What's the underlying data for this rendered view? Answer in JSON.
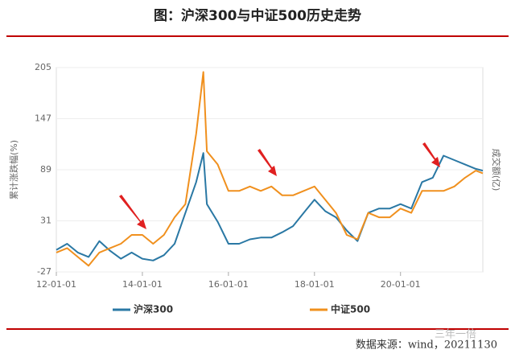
{
  "chart_data": {
    "type": "line",
    "title": "图：沪深300与中证500历史走势",
    "y_label": "累计涨跌幅(%)",
    "y2_label": "成交额(亿)",
    "x": [
      "12-01-01",
      "12-04-01",
      "12-07-01",
      "12-10-01",
      "13-01-01",
      "13-04-01",
      "13-07-01",
      "13-10-01",
      "14-01-01",
      "14-04-01",
      "14-07-01",
      "14-10-01",
      "15-01-01",
      "15-04-01",
      "15-06-01",
      "15-07-01",
      "15-10-01",
      "16-01-01",
      "16-04-01",
      "16-07-01",
      "16-10-01",
      "17-01-01",
      "17-04-01",
      "17-07-01",
      "17-10-01",
      "18-01-01",
      "18-04-01",
      "18-07-01",
      "18-10-01",
      "19-01-01",
      "19-04-01",
      "19-07-01",
      "19-10-01",
      "20-01-01",
      "20-04-01",
      "20-07-01",
      "20-10-01",
      "21-01-01",
      "21-04-01",
      "21-07-01",
      "21-10-01",
      "21-11-30"
    ],
    "xlim": [
      "12-01-01",
      "21-11-30"
    ],
    "xticks": [
      "12-01-01",
      "14-01-01",
      "16-01-01",
      "18-01-01",
      "20-01-01"
    ],
    "series": [
      {
        "name": "沪深300",
        "color": "#2a78a4",
        "values": [
          -2,
          5,
          -5,
          -10,
          8,
          -3,
          -12,
          -5,
          -12,
          -14,
          -8,
          5,
          40,
          75,
          108,
          50,
          30,
          5,
          5,
          10,
          12,
          12,
          18,
          25,
          40,
          55,
          42,
          35,
          20,
          8,
          40,
          45,
          45,
          50,
          45,
          75,
          80,
          105,
          100,
          95,
          90,
          88
        ]
      },
      {
        "name": "中证500",
        "color": "#f0901e",
        "values": [
          -5,
          0,
          -10,
          -20,
          -5,
          0,
          5,
          15,
          15,
          5,
          15,
          35,
          50,
          130,
          200,
          110,
          95,
          65,
          65,
          70,
          65,
          70,
          60,
          60,
          65,
          70,
          55,
          40,
          15,
          10,
          40,
          35,
          35,
          45,
          40,
          65,
          65,
          65,
          70,
          80,
          88,
          85
        ]
      }
    ],
    "ylim": [
      -27,
      205
    ],
    "yticks": [
      -27,
      31,
      89,
      147,
      205
    ],
    "grid": true,
    "source": "数据来源：wind，20211130",
    "watermark": "三年一倍"
  }
}
